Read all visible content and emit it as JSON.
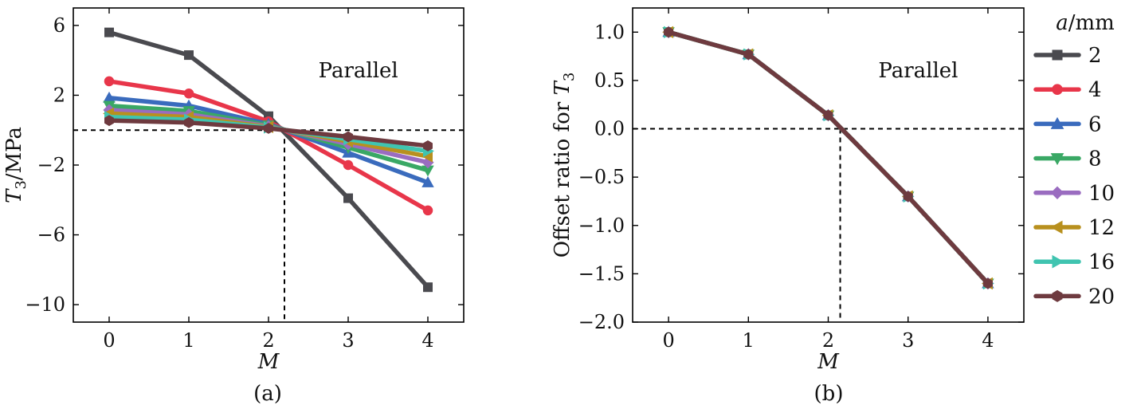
{
  "chart_data": [
    {
      "type": "line",
      "panel_caption": "(a)",
      "annotation": "Parallel",
      "xlabel": "M",
      "ylabel_main": "T",
      "ylabel_sub": "3",
      "ylabel_unit": "/MPa",
      "xlim": [
        -0.45,
        4.45
      ],
      "ylim": [
        -11,
        7
      ],
      "xticks": [
        0,
        1,
        2,
        3,
        4
      ],
      "yticks": [
        6,
        2,
        -2,
        -6,
        -10
      ],
      "ytick_labels": [
        "6",
        "2",
        "−2",
        "−6",
        "−10"
      ],
      "ref_hline_y": 0,
      "ref_vline_x": 2.2,
      "x": [
        0,
        1,
        2,
        3,
        4
      ],
      "series": [
        {
          "name": "2",
          "values": [
            5.6,
            4.3,
            0.8,
            -3.9,
            -9.0
          ]
        },
        {
          "name": "4",
          "values": [
            2.8,
            2.1,
            0.5,
            -2.0,
            -4.6
          ]
        },
        {
          "name": "6",
          "values": [
            1.85,
            1.4,
            0.35,
            -1.3,
            -3.0
          ]
        },
        {
          "name": "8",
          "values": [
            1.4,
            1.1,
            0.28,
            -1.0,
            -2.3
          ]
        },
        {
          "name": "10",
          "values": [
            1.15,
            0.9,
            0.22,
            -0.8,
            -1.85
          ]
        },
        {
          "name": "12",
          "values": [
            0.95,
            0.75,
            0.18,
            -0.65,
            -1.5
          ]
        },
        {
          "name": "16",
          "values": [
            0.75,
            0.6,
            0.15,
            -0.52,
            -1.2
          ]
        },
        {
          "name": "20",
          "values": [
            0.55,
            0.43,
            0.1,
            -0.38,
            -0.9
          ]
        }
      ]
    },
    {
      "type": "line",
      "panel_caption": "(b)",
      "annotation": "Parallel",
      "xlabel": "M",
      "ylabel_main": "Offset ratio for ",
      "ylabel_var": "T",
      "ylabel_sub": "3",
      "xlim": [
        -0.45,
        4.45
      ],
      "ylim": [
        -2.0,
        1.25
      ],
      "xticks": [
        0,
        1,
        2,
        3,
        4
      ],
      "yticks": [
        1.0,
        0.5,
        0.0,
        -0.5,
        -1.0,
        -1.5,
        -2.0
      ],
      "ytick_labels": [
        "1.0",
        "0.5",
        "0.0",
        "−0.5",
        "−1.0",
        "−1.5",
        "−2.0"
      ],
      "ref_hline_y": 0,
      "ref_vline_x": 2.15,
      "x": [
        0,
        1,
        2,
        3,
        4
      ],
      "series": [
        {
          "name": "2",
          "values": [
            1.0,
            0.77,
            0.14,
            -0.7,
            -1.6
          ]
        },
        {
          "name": "4",
          "values": [
            1.0,
            0.77,
            0.14,
            -0.7,
            -1.6
          ]
        },
        {
          "name": "6",
          "values": [
            1.0,
            0.77,
            0.14,
            -0.7,
            -1.6
          ]
        },
        {
          "name": "8",
          "values": [
            1.0,
            0.77,
            0.14,
            -0.7,
            -1.6
          ]
        },
        {
          "name": "10",
          "values": [
            1.0,
            0.77,
            0.14,
            -0.7,
            -1.6
          ]
        },
        {
          "name": "12",
          "values": [
            1.0,
            0.77,
            0.14,
            -0.7,
            -1.6
          ]
        },
        {
          "name": "16",
          "values": [
            1.0,
            0.77,
            0.14,
            -0.7,
            -1.6
          ]
        },
        {
          "name": "20",
          "values": [
            1.0,
            0.77,
            0.14,
            -0.7,
            -1.6
          ]
        }
      ]
    }
  ],
  "legend": {
    "title_var": "a",
    "title_unit": "/mm",
    "placement": "right",
    "entries": [
      {
        "label": "2",
        "color": "#4a4a4f",
        "marker": "square"
      },
      {
        "label": "4",
        "color": "#e8364a",
        "marker": "circle"
      },
      {
        "label": "6",
        "color": "#3a6bbd",
        "marker": "triangle-up"
      },
      {
        "label": "8",
        "color": "#3aa865",
        "marker": "triangle-down"
      },
      {
        "label": "10",
        "color": "#9a6cc0",
        "marker": "diamond"
      },
      {
        "label": "12",
        "color": "#b8901e",
        "marker": "triangle-left"
      },
      {
        "label": "16",
        "color": "#40c4b0",
        "marker": "triangle-right"
      },
      {
        "label": "20",
        "color": "#6e3a3f",
        "marker": "hexagon"
      }
    ]
  }
}
